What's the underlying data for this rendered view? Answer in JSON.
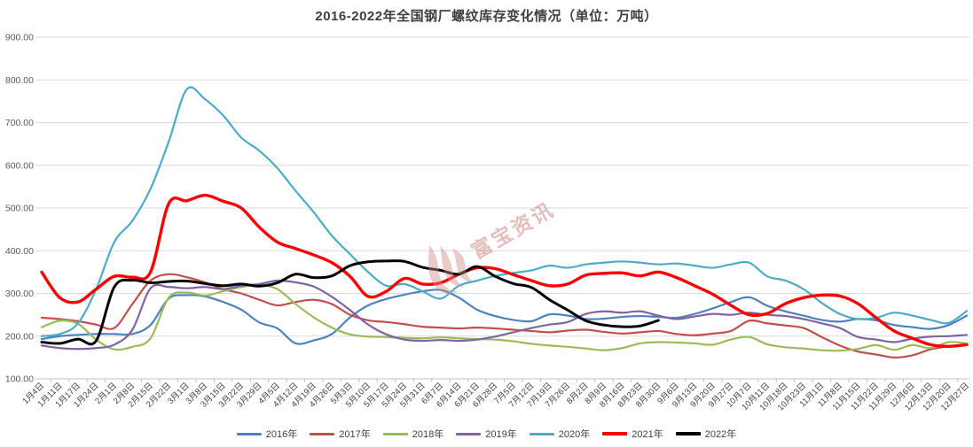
{
  "watermark": {
    "brand_text": "富宝资讯",
    "color": "#c0504d"
  },
  "chart_data": {
    "type": "line",
    "title": "2016-2022年全国钢厂螺纹库存变化情况（单位：万吨）",
    "xlabel": "",
    "ylabel": "",
    "ylim": [
      100,
      900
    ],
    "y_tick_step": 100,
    "grid": true,
    "legend_position": "bottom",
    "categories": [
      "1月4日",
      "1月11日",
      "1月17日",
      "1月24日",
      "2月1日",
      "2月8日",
      "2月15日",
      "2月22日",
      "3月1日",
      "3月8日",
      "3月15日",
      "3月22日",
      "3月29日",
      "4月5日",
      "4月12日",
      "4月19日",
      "4月26日",
      "5月3日",
      "5月10日",
      "5月17日",
      "5月24日",
      "5月31日",
      "6月7日",
      "6月14日",
      "6月21日",
      "6月28日",
      "7月5日",
      "7月12日",
      "7月19日",
      "7月26日",
      "8月2日",
      "8月9日",
      "8月16日",
      "8月23日",
      "8月30日",
      "9月6日",
      "9月13日",
      "9月20日",
      "9月27日",
      "10月7日",
      "10月11日",
      "10月18日",
      "10月23日",
      "11月1日",
      "11月8日",
      "11月15日",
      "11月22日",
      "11月29日",
      "12月6日",
      "12月13日",
      "12月20日",
      "12月27日"
    ],
    "series": [
      {
        "name": "2016年",
        "color": "#4f81bd",
        "width": 2.2,
        "values": [
          193,
          200,
          203,
          205,
          205,
          205,
          226,
          288,
          296,
          293,
          280,
          262,
          232,
          218,
          183,
          190,
          205,
          244,
          272,
          287,
          297,
          305,
          308,
          290,
          262,
          247,
          238,
          235,
          251,
          248,
          240,
          241,
          245,
          247,
          245,
          243,
          252,
          265,
          280,
          291,
          271,
          258,
          248,
          238,
          234,
          240,
          237,
          226,
          221,
          217,
          226,
          248
        ]
      },
      {
        "name": "2017年",
        "color": "#c0504d",
        "width": 2.2,
        "values": [
          243,
          240,
          235,
          227,
          219,
          275,
          330,
          345,
          338,
          326,
          310,
          300,
          285,
          272,
          280,
          285,
          275,
          250,
          237,
          233,
          228,
          222,
          220,
          218,
          220,
          218,
          215,
          212,
          209,
          213,
          215,
          210,
          206,
          209,
          212,
          205,
          202,
          206,
          212,
          236,
          230,
          225,
          219,
          198,
          178,
          164,
          157,
          150,
          155,
          169,
          176,
          180
        ]
      },
      {
        "name": "2018年",
        "color": "#9bbb59",
        "width": 2.2,
        "values": [
          221,
          236,
          229,
          192,
          169,
          175,
          195,
          290,
          302,
          295,
          305,
          315,
          320,
          310,
          275,
          244,
          220,
          204,
          199,
          198,
          196,
          195,
          197,
          195,
          193,
          192,
          188,
          182,
          178,
          175,
          171,
          167,
          172,
          183,
          186,
          185,
          183,
          180,
          192,
          198,
          181,
          174,
          171,
          167,
          166,
          170,
          179,
          168,
          179,
          172,
          186,
          183
        ]
      },
      {
        "name": "2019年",
        "color": "#8064a2",
        "width": 2.2,
        "values": [
          178,
          172,
          170,
          172,
          180,
          215,
          312,
          315,
          312,
          315,
          310,
          318,
          322,
          330,
          326,
          316,
          292,
          261,
          227,
          204,
          192,
          189,
          191,
          189,
          192,
          199,
          209,
          219,
          227,
          233,
          252,
          258,
          255,
          258,
          248,
          240,
          246,
          252,
          250,
          255,
          250,
          247,
          240,
          230,
          219,
          198,
          192,
          186,
          194,
          199,
          200,
          203
        ]
      },
      {
        "name": "2020年",
        "color": "#4bacc6",
        "width": 2.2,
        "values": [
          200,
          205,
          230,
          310,
          420,
          470,
          545,
          655,
          778,
          755,
          717,
          665,
          634,
          593,
          540,
          490,
          435,
          392,
          350,
          318,
          322,
          305,
          288,
          318,
          330,
          341,
          348,
          354,
          365,
          360,
          368,
          372,
          375,
          372,
          368,
          370,
          365,
          360,
          368,
          372,
          340,
          330,
          310,
          278,
          252,
          240,
          243,
          255,
          248,
          238,
          231,
          259
        ]
      },
      {
        "name": "2021年",
        "color": "#ff0000",
        "width": 3.4,
        "values": [
          350,
          290,
          280,
          310,
          340,
          338,
          350,
          510,
          517,
          530,
          516,
          500,
          455,
          420,
          405,
          390,
          372,
          340,
          293,
          305,
          335,
          322,
          325,
          345,
          360,
          358,
          344,
          330,
          318,
          322,
          343,
          347,
          348,
          341,
          350,
          337,
          318,
          298,
          272,
          250,
          253,
          276,
          290,
          296,
          294,
          276,
          243,
          212,
          195,
          180,
          176,
          180
        ]
      },
      {
        "name": "2022年",
        "color": "#000000",
        "width": 3.0,
        "values": [
          186,
          183,
          193,
          189,
          315,
          331,
          325,
          328,
          329,
          323,
          318,
          322,
          317,
          325,
          345,
          337,
          341,
          365,
          374,
          376,
          375,
          361,
          354,
          345,
          363,
          340,
          323,
          314,
          285,
          261,
          236,
          226,
          222,
          224,
          237,
          null,
          null,
          null,
          null,
          null,
          null,
          null,
          null,
          null,
          null,
          null,
          null,
          null,
          null,
          null,
          null,
          null
        ]
      }
    ]
  }
}
